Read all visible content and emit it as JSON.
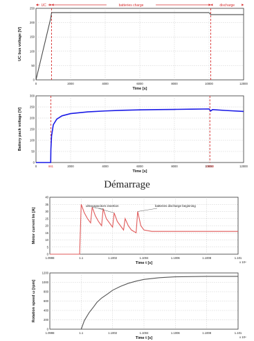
{
  "section_title": "Démarrage",
  "chart_data": [
    {
      "type": "line",
      "ylabel": "UC bus voltage [V]",
      "xlabel": "Time [s]",
      "xlim": [
        0,
        12000
      ],
      "ylim": [
        0,
        250
      ],
      "xticks": [
        "0",
        "2000",
        "4000",
        "6000",
        "8000",
        "10000",
        "12000"
      ],
      "yticks": [
        "0",
        "50",
        "100",
        "150",
        "200",
        "250"
      ],
      "grid": true,
      "phases": [
        {
          "label": "UC",
          "from": 0,
          "to": 900
        },
        {
          "label": "batteries charge",
          "from": 900,
          "to": 10100
        },
        {
          "label": "discharge",
          "from": 10100,
          "to": 12000
        }
      ],
      "series": [
        {
          "color": "#4a4a4a",
          "x": [
            0,
            850,
            900,
            10000,
            10100,
            12000
          ],
          "y": [
            0,
            215,
            235,
            235,
            228,
            228
          ]
        }
      ],
      "markers": [
        900,
        10100
      ]
    },
    {
      "type": "line",
      "ylabel": "Battery pack voltage [V]",
      "xlabel": "Time [s]",
      "xlim": [
        0,
        12000
      ],
      "ylim": [
        0,
        300
      ],
      "xticks": [
        "0",
        "2000",
        "4000",
        "6000",
        "8000",
        "10000",
        "12000"
      ],
      "yticks": [
        "0",
        "50",
        "100",
        "150",
        "200",
        "250",
        "300"
      ],
      "grid": true,
      "marker_labels": [
        "861",
        "10050"
      ],
      "series": [
        {
          "color": "#1a1ae6",
          "x": [
            0,
            850,
            861,
            900,
            1000,
            1200,
            1500,
            2000,
            3000,
            4000,
            5000,
            6000,
            7000,
            8000,
            9000,
            10000,
            10100,
            10200,
            11000,
            12000
          ],
          "y": [
            0,
            0,
            60,
            120,
            170,
            195,
            210,
            220,
            228,
            232,
            235,
            237,
            238,
            239,
            240,
            241,
            232,
            238,
            234,
            230
          ]
        }
      ],
      "markers": [
        861,
        10050
      ]
    },
    {
      "type": "line",
      "ylabel": "Motor current Im [A]",
      "xlabel": "Time t [s]",
      "exponent": "x 10⁴",
      "xlim": [
        1.0998,
        1.101
      ],
      "ylim": [
        0,
        40
      ],
      "xticks": [
        "1.0998",
        "1.1",
        "1.1002",
        "1.1004",
        "1.1006",
        "1.1008",
        "1.101"
      ],
      "yticks": [
        "0",
        "5",
        "10",
        "15",
        "20",
        "25",
        "30",
        "35",
        "40"
      ],
      "grid": true,
      "annotations": [
        "ultracapacitors insertion",
        "batteries discharge beginning"
      ],
      "series": [
        {
          "color": "#e05a5a",
          "x": [
            1.0998,
            1.09999,
            1.1,
            1.10002,
            1.10004,
            1.10006,
            1.10007,
            1.10009,
            1.10011,
            1.10013,
            1.10014,
            1.10016,
            1.10018,
            1.1002,
            1.10021,
            1.10023,
            1.10025,
            1.10027,
            1.10028,
            1.1003,
            1.10032,
            1.10035,
            1.10036,
            1.10038,
            1.1004,
            1.10045,
            1.1005,
            1.1006,
            1.1008,
            1.101
          ],
          "y": [
            0,
            0,
            35,
            29,
            25,
            22,
            33,
            27,
            23,
            20,
            32,
            25,
            22,
            19,
            29,
            23,
            20,
            17,
            25,
            20,
            17,
            15,
            30,
            20,
            17,
            16,
            16,
            16,
            16,
            16
          ]
        }
      ]
    },
    {
      "type": "line",
      "ylabel": "Rotation speed ω [rpm]",
      "xlabel": "Time t [s]",
      "exponent": "x 10⁴",
      "xlim": [
        1.0998,
        1.101
      ],
      "ylim": [
        0,
        1300
      ],
      "xticks": [
        "1.0998",
        "1.1",
        "1.1002",
        "1.1004",
        "1.1006",
        "1.1008",
        "1.101"
      ],
      "yticks": [
        "0",
        "200",
        "400",
        "600",
        "800",
        "1000",
        "1200"
      ],
      "grid": true,
      "series": [
        {
          "color": "#555555",
          "x": [
            1.1,
            1.10002,
            1.10005,
            1.10008,
            1.1001,
            1.10013,
            1.10017,
            1.1002,
            1.10025,
            1.1003,
            1.10035,
            1.1004,
            1.1005,
            1.1006,
            1.1008,
            1.101
          ],
          "y": [
            0,
            200,
            380,
            520,
            620,
            720,
            820,
            900,
            990,
            1060,
            1110,
            1150,
            1190,
            1210,
            1220,
            1220
          ]
        }
      ]
    }
  ]
}
